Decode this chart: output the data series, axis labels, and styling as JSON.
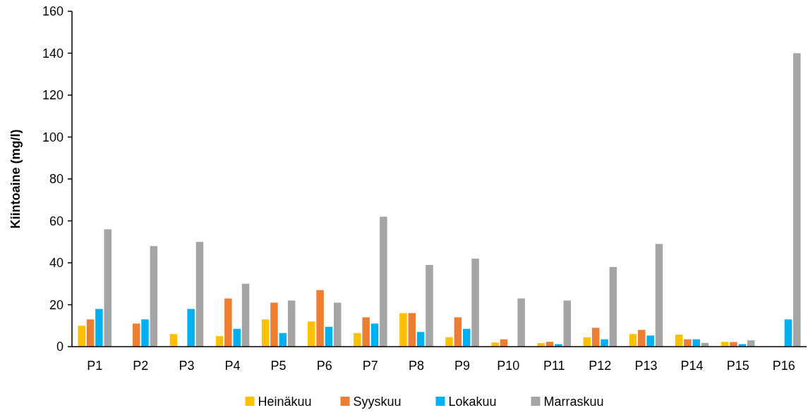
{
  "chart_data": {
    "type": "bar",
    "ylabel": "Kiintoaine (mg/l)",
    "categories": [
      "P1",
      "P2",
      "P3",
      "P4",
      "P5",
      "P6",
      "P7",
      "P8",
      "P9",
      "P10",
      "P11",
      "P12",
      "P13",
      "P14",
      "P15",
      "P16"
    ],
    "series": [
      {
        "name": "Heinäkuu",
        "color": "#ffc000",
        "values": [
          10,
          null,
          6,
          5,
          13,
          12,
          6.5,
          16,
          4.5,
          2,
          1.7,
          4.5,
          6,
          5.7,
          2.3,
          null
        ]
      },
      {
        "name": "Syyskuu",
        "color": "#ed7d31",
        "values": [
          13,
          11,
          null,
          23,
          21,
          27,
          14,
          16,
          14,
          3.5,
          2.3,
          9,
          8,
          3.5,
          2.2,
          null
        ]
      },
      {
        "name": "Lokakuu",
        "color": "#00b0f0",
        "values": [
          18,
          13,
          18,
          8.5,
          6.5,
          9.5,
          11,
          7,
          8.5,
          null,
          1.2,
          3.5,
          5.3,
          3.5,
          1.2,
          13
        ]
      },
      {
        "name": "Marraskuu",
        "color": "#a5a5a5",
        "values": [
          56,
          48,
          50,
          30,
          22,
          21,
          62,
          39,
          42,
          23,
          22,
          38,
          49,
          1.8,
          3,
          140
        ]
      }
    ],
    "ylim": [
      0,
      160
    ],
    "yticks": [
      0,
      20,
      40,
      60,
      80,
      100,
      120,
      140,
      160
    ],
    "legend": "bottom"
  }
}
